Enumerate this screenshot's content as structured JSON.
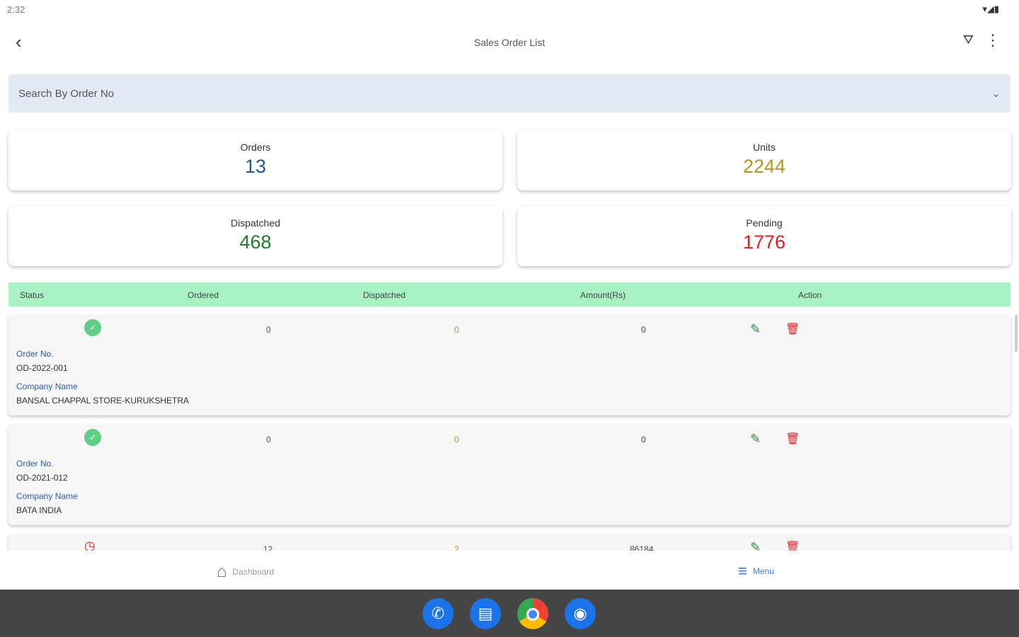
{
  "status_bar": {
    "time": "2:32",
    "icons": "▾◢▮"
  },
  "app_bar": {
    "title": "Sales Order List",
    "back_icon": "chevron-left",
    "filter_icon": "filter",
    "more_icon": "more-vert"
  },
  "search": {
    "placeholder": "Search By Order No"
  },
  "summary": [
    {
      "label": "Orders",
      "value": "13",
      "color": "#1f5a96"
    },
    {
      "label": "Units",
      "value": "2244",
      "color": "#b8961a"
    },
    {
      "label": "Dispatched",
      "value": "468",
      "color": "#1e7d2a"
    },
    {
      "label": "Pending",
      "value": "1776",
      "color": "#e32020"
    }
  ],
  "table": {
    "headers": [
      "Status",
      "Ordered",
      "Dispatched",
      "Amount(Rs)",
      "Action"
    ],
    "order_no_label": "Order No.",
    "company_label": "Company Name",
    "rows": [
      {
        "status": "complete",
        "ordered": "0",
        "dispatched": "0",
        "amount": "0",
        "order_no": "OD-2022-001",
        "company": "BANSAL CHAPPAL STORE-KURUKSHETRA"
      },
      {
        "status": "complete",
        "ordered": "0",
        "dispatched": "0",
        "amount": "0",
        "order_no": "OD-2021-012",
        "company": "BATA INDIA"
      },
      {
        "status": "pending",
        "ordered": "12",
        "dispatched": "2",
        "amount": "86184"
      }
    ]
  },
  "bottom_nav": {
    "dashboard": "Dashboard",
    "menu": "Menu",
    "active": "menu"
  }
}
